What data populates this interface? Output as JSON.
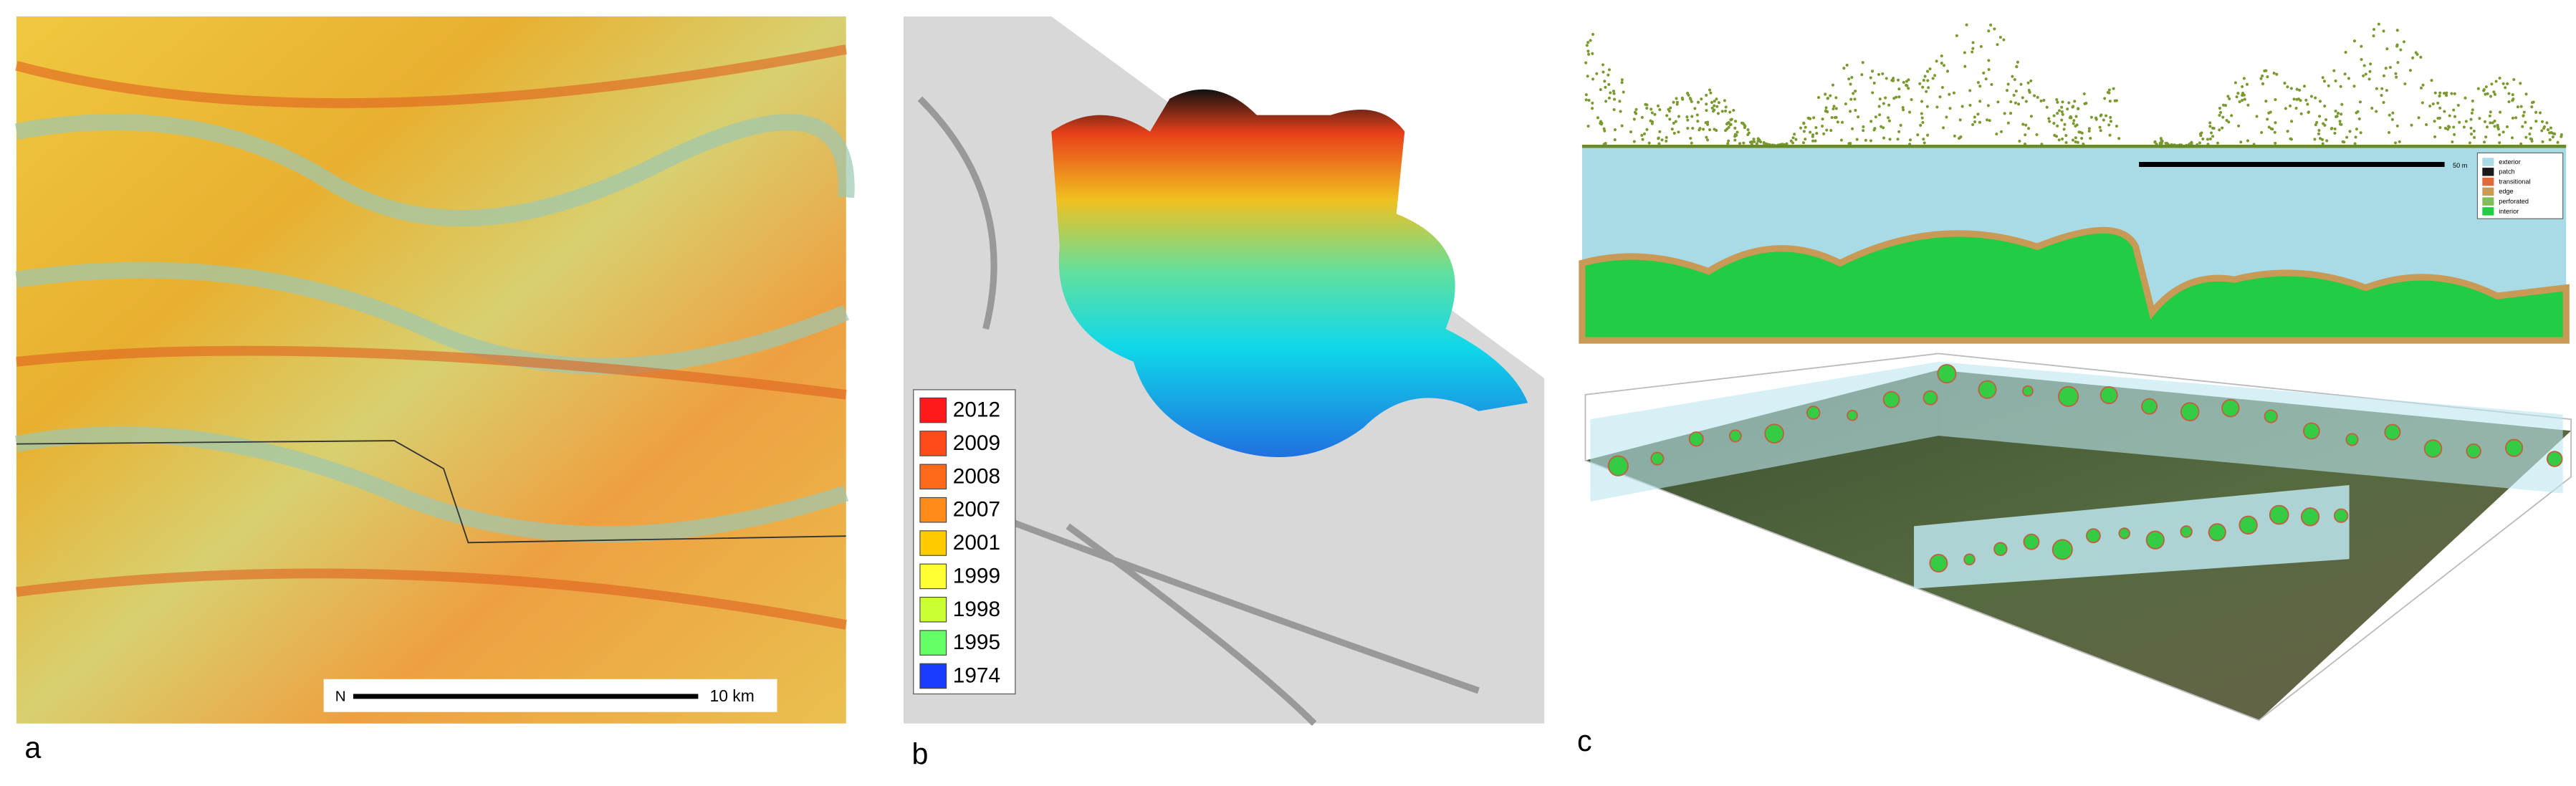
{
  "panels": {
    "a": {
      "label": "a",
      "north": "N",
      "scale_bar": "10 km"
    },
    "b": {
      "label": "b",
      "legend": [
        {
          "label": "2012",
          "color": "#ff1a1a"
        },
        {
          "label": "2009",
          "color": "#ff4a1a"
        },
        {
          "label": "2008",
          "color": "#ff6a1a"
        },
        {
          "label": "2007",
          "color": "#ff8c1a"
        },
        {
          "label": "2001",
          "color": "#ffcc00"
        },
        {
          "label": "1999",
          "color": "#ffff33"
        },
        {
          "label": "1998",
          "color": "#ccff33"
        },
        {
          "label": "1995",
          "color": "#66ff66"
        },
        {
          "label": "1974",
          "color": "#1a3cff"
        }
      ]
    },
    "c": {
      "label": "c",
      "scale_bar": "50 m",
      "legend": [
        {
          "label": "exterior",
          "color": "#a8dbe6"
        },
        {
          "label": "patch",
          "color": "#1a1a1a"
        },
        {
          "label": "transitional",
          "color": "#e06a3a"
        },
        {
          "label": "edge",
          "color": "#c89a55"
        },
        {
          "label": "perforated",
          "color": "#7fbf5a"
        },
        {
          "label": "interior",
          "color": "#22cc44"
        }
      ]
    }
  }
}
